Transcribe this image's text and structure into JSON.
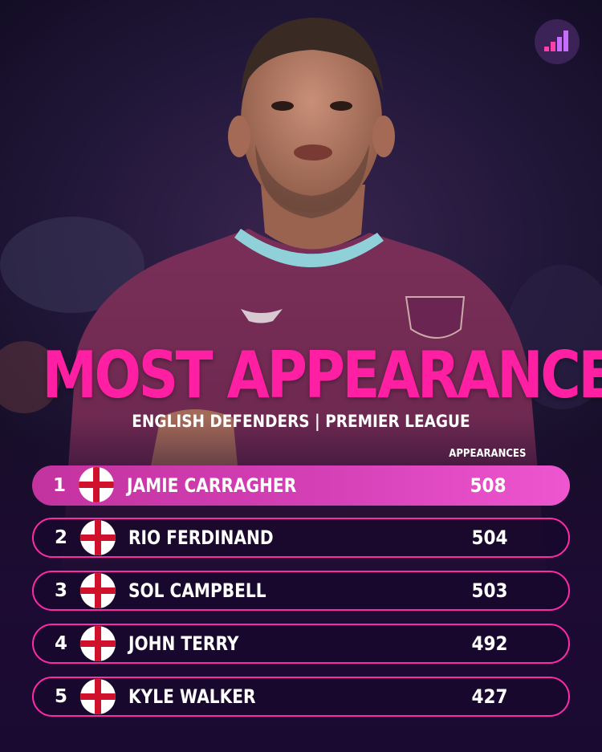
{
  "title": "MOST APPEARANCES",
  "subtitle": "ENGLISH DEFENDERS | PREMIER LEAGUE",
  "column_header": "APPEARANCES",
  "colors": {
    "accent_pink": "#ff1fa3",
    "highlight_row": "#d540b7",
    "background": "#1a0930",
    "flag_cross": "#d0112b"
  },
  "rows": [
    {
      "rank": "1",
      "flag": "england-flag-icon",
      "name": "JAMIE CARRAGHER",
      "appearances": "508"
    },
    {
      "rank": "2",
      "flag": "england-flag-icon",
      "name": "RIO FERDINAND",
      "appearances": "504"
    },
    {
      "rank": "3",
      "flag": "england-flag-icon",
      "name": "SOL CAMPBELL",
      "appearances": "503"
    },
    {
      "rank": "4",
      "flag": "england-flag-icon",
      "name": "JOHN TERRY",
      "appearances": "492"
    },
    {
      "rank": "5",
      "flag": "england-flag-icon",
      "name": "KYLE WALKER",
      "appearances": "427"
    }
  ]
}
